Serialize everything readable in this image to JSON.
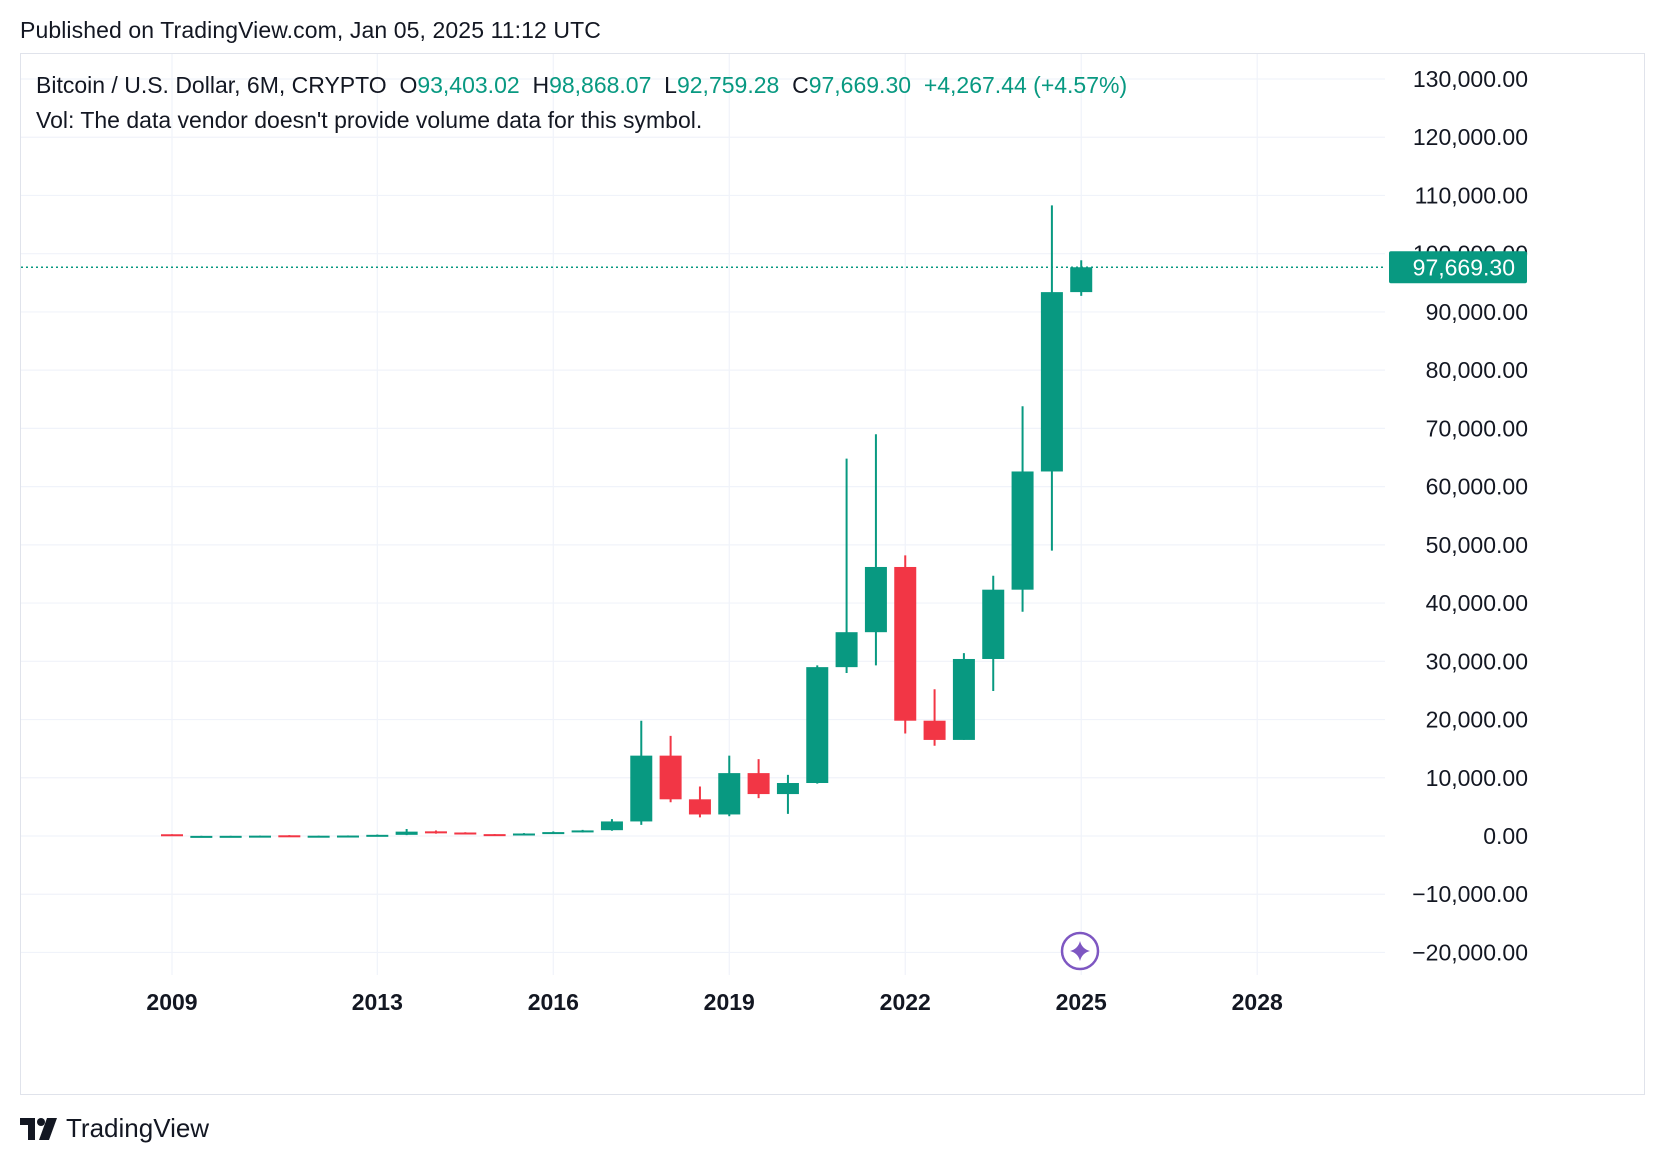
{
  "header": {
    "published": "Published on TradingView.com, Jan 05, 2025 11:12 UTC"
  },
  "legend": {
    "symbol": "Bitcoin / U.S. Dollar, 6M, CRYPTO",
    "o_label": "O",
    "o_value": "93,403.02",
    "h_label": "H",
    "h_value": "98,868.07",
    "l_label": "L",
    "l_value": "92,759.28",
    "c_label": "C",
    "c_value": "97,669.30",
    "change": "+4,267.44 (+4.57%)",
    "volume_note": "Vol: The data vendor doesn't provide volume data for this symbol."
  },
  "footer": {
    "brand": "TradingView"
  },
  "colors": {
    "up": "#089981",
    "down": "#f23645",
    "grid": "#f0f3fa",
    "text": "#131722",
    "ai_badge": "#7e57c2"
  },
  "chart_data": {
    "type": "candlestick",
    "symbol": "Bitcoin / U.S. Dollar",
    "interval": "6M",
    "ylim": [
      -25000,
      135000
    ],
    "y_ticks": [
      130000,
      120000,
      110000,
      100000,
      90000,
      80000,
      70000,
      60000,
      50000,
      40000,
      30000,
      20000,
      10000,
      0,
      -10000,
      -20000
    ],
    "y_tick_labels": [
      "130,000.00",
      "120,000.00",
      "110,000.00",
      "100,000.00",
      "90,000.00",
      "80,000.00",
      "70,000.00",
      "60,000.00",
      "50,000.00",
      "40,000.00",
      "30,000.00",
      "20,000.00",
      "10,000.00",
      "0.00",
      "−10,000.00",
      "−20,000.00"
    ],
    "x_ticks": [
      {
        "label": "2009",
        "t": 2009.0
      },
      {
        "label": "2013",
        "t": 2012.5
      },
      {
        "label": "2016",
        "t": 2015.5
      },
      {
        "label": "2019",
        "t": 2018.5
      },
      {
        "label": "2022",
        "t": 2021.5
      },
      {
        "label": "2025",
        "t": 2024.5
      },
      {
        "label": "2028",
        "t": 2027.5
      }
    ],
    "last_price": 97669.3,
    "last_price_label": "97,669.30",
    "candles": [
      {
        "t": 2009.0,
        "o": 300,
        "h": 300,
        "l": 0,
        "c": 0
      },
      {
        "t": 2009.5,
        "o": 0,
        "h": 30,
        "l": 0,
        "c": 20
      },
      {
        "t": 2010.0,
        "o": 20,
        "h": 40,
        "l": 10,
        "c": 30
      },
      {
        "t": 2010.5,
        "o": 30,
        "h": 80,
        "l": 20,
        "c": 60
      },
      {
        "t": 2011.0,
        "o": 120,
        "h": 150,
        "l": 0,
        "c": 40
      },
      {
        "t": 2011.5,
        "o": 40,
        "h": 60,
        "l": 10,
        "c": 50
      },
      {
        "t": 2012.0,
        "o": 50,
        "h": 100,
        "l": 30,
        "c": 80
      },
      {
        "t": 2012.5,
        "o": 80,
        "h": 250,
        "l": 60,
        "c": 200
      },
      {
        "t": 2013.0,
        "o": 200,
        "h": 1200,
        "l": 150,
        "c": 750
      },
      {
        "t": 2013.5,
        "o": 800,
        "h": 950,
        "l": 400,
        "c": 600
      },
      {
        "t": 2014.0,
        "o": 600,
        "h": 650,
        "l": 300,
        "c": 320
      },
      {
        "t": 2014.5,
        "o": 320,
        "h": 330,
        "l": 150,
        "c": 250
      },
      {
        "t": 2015.0,
        "o": 250,
        "h": 500,
        "l": 200,
        "c": 430
      },
      {
        "t": 2015.5,
        "o": 430,
        "h": 780,
        "l": 380,
        "c": 670
      },
      {
        "t": 2016.0,
        "o": 670,
        "h": 1050,
        "l": 600,
        "c": 960
      },
      {
        "t": 2016.5,
        "o": 1000,
        "h": 2900,
        "l": 900,
        "c": 2500
      },
      {
        "t": 2017.0,
        "o": 2500,
        "h": 19800,
        "l": 1900,
        "c": 13800
      },
      {
        "t": 2017.5,
        "o": 13800,
        "h": 17200,
        "l": 5800,
        "c": 6300
      },
      {
        "t": 2018.0,
        "o": 6300,
        "h": 8500,
        "l": 3200,
        "c": 3700
      },
      {
        "t": 2018.5,
        "o": 3700,
        "h": 13800,
        "l": 3400,
        "c": 10800
      },
      {
        "t": 2019.0,
        "o": 10800,
        "h": 13200,
        "l": 6500,
        "c": 7200
      },
      {
        "t": 2019.5,
        "o": 7200,
        "h": 10500,
        "l": 3800,
        "c": 9100
      },
      {
        "t": 2020.0,
        "o": 9100,
        "h": 29300,
        "l": 9000,
        "c": 29000
      },
      {
        "t": 2020.5,
        "o": 29000,
        "h": 64800,
        "l": 28000,
        "c": 35000
      },
      {
        "t": 2021.0,
        "o": 35000,
        "h": 69000,
        "l": 29300,
        "c": 46200
      },
      {
        "t": 2021.5,
        "o": 46200,
        "h": 48200,
        "l": 17600,
        "c": 19800
      },
      {
        "t": 2022.0,
        "o": 19800,
        "h": 25200,
        "l": 15500,
        "c": 16500
      },
      {
        "t": 2022.5,
        "o": 16500,
        "h": 31400,
        "l": 16500,
        "c": 30400
      },
      {
        "t": 2023.0,
        "o": 30400,
        "h": 44700,
        "l": 24900,
        "c": 42300
      },
      {
        "t": 2023.5,
        "o": 42300,
        "h": 73800,
        "l": 38500,
        "c": 62600
      },
      {
        "t": 2024.0,
        "o": 62600,
        "h": 108300,
        "l": 49000,
        "c": 93400
      },
      {
        "t": 2024.5,
        "o": 93403.02,
        "h": 98868.07,
        "l": 92759.28,
        "c": 97669.3
      }
    ]
  }
}
